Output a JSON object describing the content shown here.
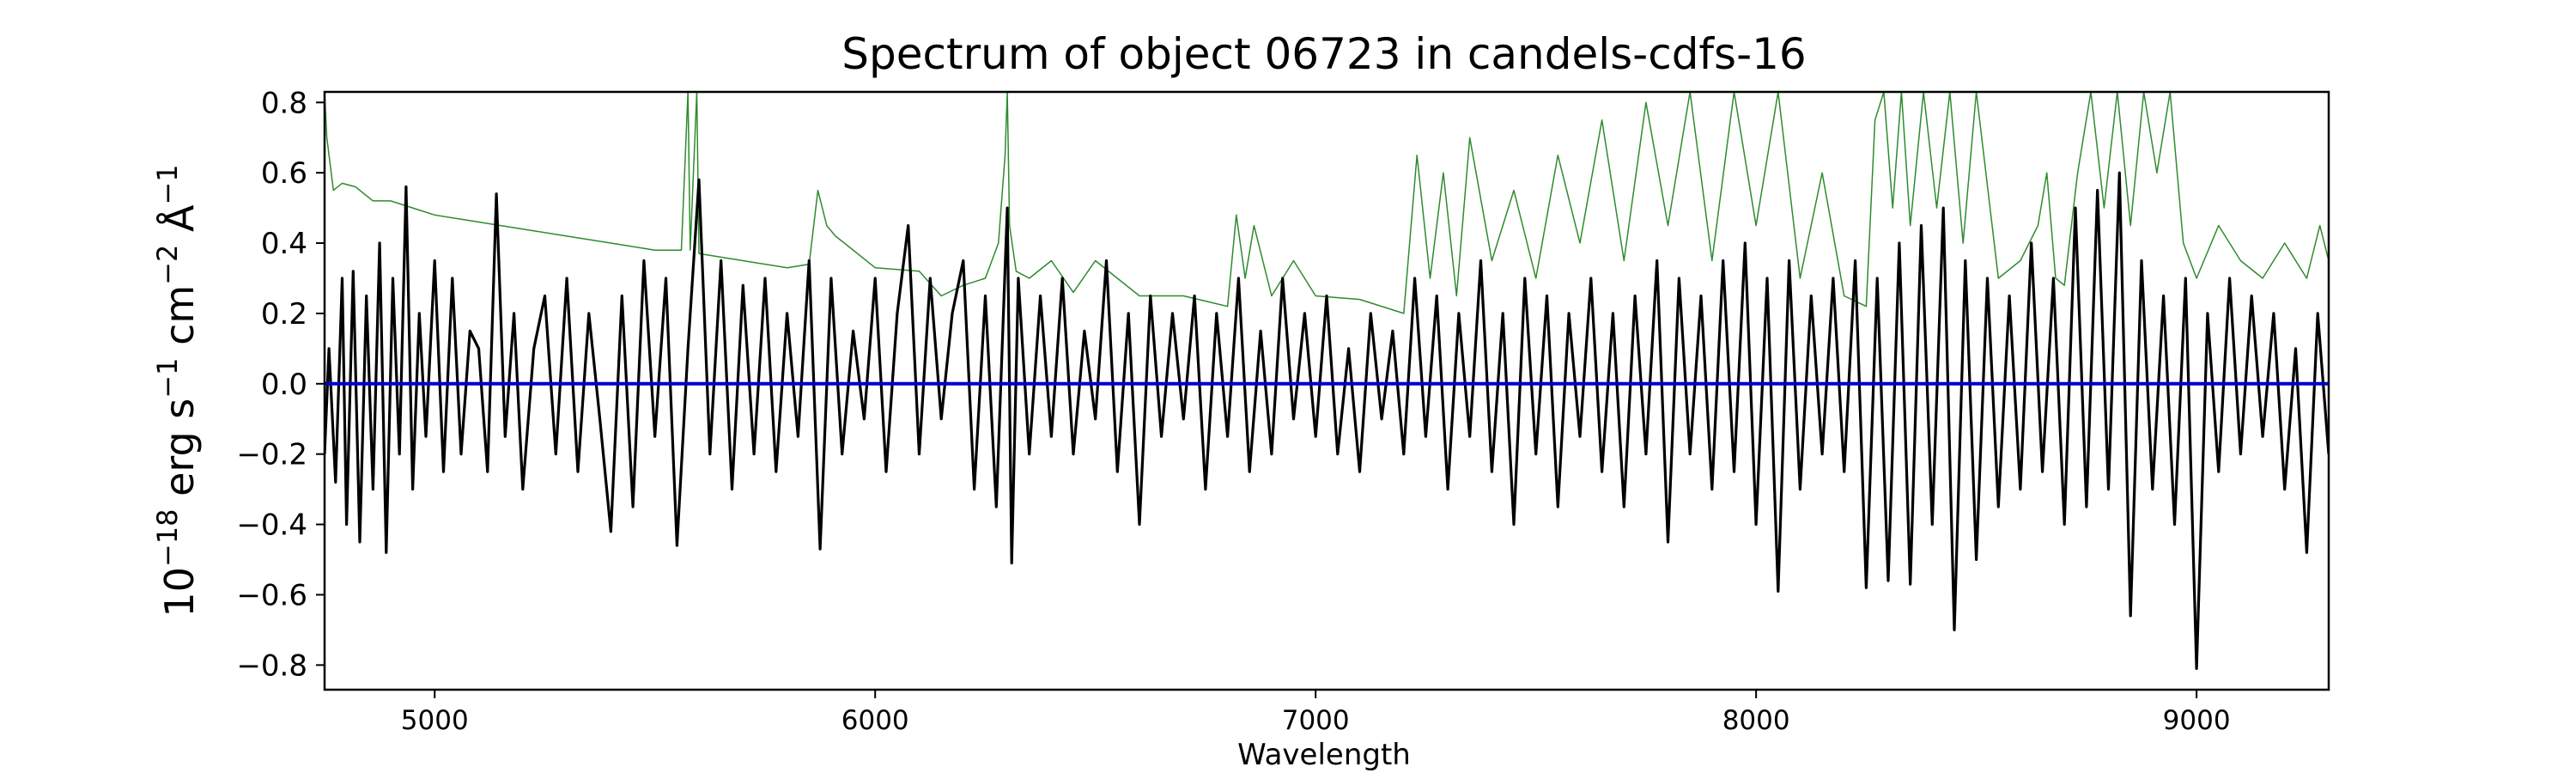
{
  "chart_data": {
    "type": "line",
    "title": "Spectrum of object 06723 in candels-cdfs-16",
    "xlabel": "Wavelength",
    "ylabel_base": "10",
    "ylabel_exp": "−18",
    "ylabel_rest": " erg s",
    "ylabel_s_exp": "−1",
    "ylabel_cm": " cm",
    "ylabel_cm_exp": "−2",
    "ylabel_A": " Å",
    "ylabel_A_exp": "−1",
    "xlim": [
      4750,
      9300
    ],
    "ylim": [
      -0.87,
      0.83
    ],
    "x_ticks": [
      5000,
      6000,
      7000,
      8000,
      9000
    ],
    "x_tick_labels": [
      "5000",
      "6000",
      "7000",
      "8000",
      "9000"
    ],
    "y_ticks": [
      -0.8,
      -0.6,
      -0.4,
      -0.2,
      0.0,
      0.2,
      0.4,
      0.6,
      0.8
    ],
    "y_tick_labels": [
      "−0.8",
      "−0.6",
      "−0.4",
      "−0.2",
      "0.0",
      "0.2",
      "0.4",
      "0.6",
      "0.8"
    ],
    "grid": false,
    "colors": {
      "flux": "#000000",
      "error": "#2e8b2e",
      "zero": "#0000cc"
    },
    "series": [
      {
        "role": "flux",
        "x": [
          4750,
          4760,
          4775,
          4790,
          4800,
          4815,
          4830,
          4845,
          4860,
          4875,
          4890,
          4905,
          4920,
          4935,
          4950,
          4965,
          4980,
          5000,
          5020,
          5040,
          5060,
          5080,
          5100,
          5120,
          5140,
          5160,
          5180,
          5200,
          5225,
          5250,
          5275,
          5300,
          5325,
          5350,
          5375,
          5400,
          5425,
          5450,
          5475,
          5500,
          5525,
          5550,
          5575,
          5600,
          5625,
          5650,
          5675,
          5700,
          5725,
          5750,
          5775,
          5800,
          5825,
          5850,
          5875,
          5900,
          5925,
          5950,
          5975,
          6000,
          6025,
          6050,
          6075,
          6100,
          6125,
          6150,
          6175,
          6200,
          6225,
          6250,
          6275,
          6300,
          6310,
          6325,
          6350,
          6375,
          6400,
          6425,
          6450,
          6475,
          6500,
          6525,
          6550,
          6575,
          6600,
          6625,
          6650,
          6675,
          6700,
          6725,
          6750,
          6775,
          6800,
          6825,
          6850,
          6875,
          6900,
          6925,
          6950,
          6975,
          7000,
          7025,
          7050,
          7075,
          7100,
          7125,
          7150,
          7175,
          7200,
          7225,
          7250,
          7275,
          7300,
          7325,
          7350,
          7375,
          7400,
          7425,
          7450,
          7475,
          7500,
          7525,
          7550,
          7575,
          7600,
          7625,
          7650,
          7675,
          7700,
          7725,
          7750,
          7775,
          7800,
          7825,
          7850,
          7875,
          7900,
          7925,
          7950,
          7975,
          8000,
          8025,
          8050,
          8075,
          8100,
          8125,
          8150,
          8175,
          8200,
          8225,
          8250,
          8275,
          8300,
          8325,
          8350,
          8375,
          8400,
          8425,
          8450,
          8475,
          8500,
          8525,
          8550,
          8575,
          8600,
          8625,
          8650,
          8675,
          8700,
          8725,
          8750,
          8775,
          8800,
          8825,
          8850,
          8875,
          8900,
          8925,
          8950,
          8975,
          9000,
          9025,
          9050,
          9075,
          9100,
          9125,
          9150,
          9175,
          9200,
          9225,
          9250,
          9275,
          9300
        ],
        "y": [
          -0.2,
          0.1,
          -0.28,
          0.3,
          -0.4,
          0.32,
          -0.45,
          0.25,
          -0.3,
          0.4,
          -0.48,
          0.3,
          -0.2,
          0.56,
          -0.3,
          0.2,
          -0.15,
          0.35,
          -0.25,
          0.3,
          -0.2,
          0.15,
          0.1,
          -0.25,
          0.54,
          -0.15,
          0.2,
          -0.3,
          0.1,
          0.25,
          -0.2,
          0.3,
          -0.25,
          0.2,
          -0.1,
          -0.42,
          0.25,
          -0.35,
          0.35,
          -0.15,
          0.3,
          -0.46,
          0.1,
          0.58,
          -0.2,
          0.35,
          -0.3,
          0.28,
          -0.2,
          0.3,
          -0.25,
          0.2,
          -0.15,
          0.35,
          -0.47,
          0.3,
          -0.2,
          0.15,
          -0.1,
          0.3,
          -0.25,
          0.2,
          0.45,
          -0.2,
          0.3,
          -0.1,
          0.2,
          0.35,
          -0.3,
          0.25,
          -0.35,
          0.5,
          -0.51,
          0.3,
          -0.2,
          0.25,
          -0.15,
          0.3,
          -0.2,
          0.15,
          -0.1,
          0.35,
          -0.25,
          0.2,
          -0.4,
          0.25,
          -0.15,
          0.2,
          -0.1,
          0.25,
          -0.3,
          0.2,
          -0.15,
          0.3,
          -0.25,
          0.15,
          -0.2,
          0.3,
          -0.1,
          0.2,
          -0.15,
          0.25,
          -0.2,
          0.1,
          -0.25,
          0.2,
          -0.1,
          0.15,
          -0.2,
          0.3,
          -0.15,
          0.25,
          -0.3,
          0.2,
          -0.15,
          0.35,
          -0.25,
          0.2,
          -0.4,
          0.3,
          -0.2,
          0.25,
          -0.35,
          0.2,
          -0.15,
          0.3,
          -0.25,
          0.2,
          -0.35,
          0.25,
          -0.2,
          0.35,
          -0.45,
          0.3,
          -0.2,
          0.25,
          -0.3,
          0.35,
          -0.25,
          0.4,
          -0.4,
          0.3,
          -0.59,
          0.35,
          -0.3,
          0.25,
          -0.2,
          0.3,
          -0.25,
          0.35,
          -0.58,
          0.3,
          -0.56,
          0.4,
          -0.57,
          0.45,
          -0.4,
          0.5,
          -0.7,
          0.35,
          -0.5,
          0.3,
          -0.35,
          0.25,
          -0.3,
          0.4,
          -0.25,
          0.3,
          -0.4,
          0.5,
          -0.35,
          0.55,
          -0.3,
          0.6,
          -0.66,
          0.35,
          -0.3,
          0.25,
          -0.4,
          0.3,
          -0.81,
          0.2,
          -0.25,
          0.3,
          -0.2,
          0.25,
          -0.15,
          0.2,
          -0.3,
          0.1,
          -0.48,
          0.2,
          -0.2
        ],
        "name": ""
      },
      {
        "role": "error",
        "x": [
          4750,
          4755,
          4770,
          4790,
          4820,
          4860,
          4900,
          4950,
          5000,
          5100,
          5200,
          5300,
          5400,
          5500,
          5560,
          5575,
          5580,
          5595,
          5600,
          5700,
          5800,
          5850,
          5870,
          5890,
          5910,
          5930,
          6000,
          6100,
          6150,
          6200,
          6250,
          6280,
          6295,
          6300,
          6305,
          6320,
          6350,
          6400,
          6450,
          6500,
          6550,
          6600,
          6700,
          6800,
          6820,
          6840,
          6860,
          6900,
          6950,
          7000,
          7100,
          7200,
          7230,
          7260,
          7290,
          7320,
          7350,
          7400,
          7450,
          7500,
          7550,
          7600,
          7650,
          7700,
          7750,
          7800,
          7850,
          7900,
          7950,
          8000,
          8050,
          8100,
          8150,
          8200,
          8250,
          8270,
          8290,
          8310,
          8330,
          8350,
          8380,
          8410,
          8440,
          8470,
          8500,
          8550,
          8600,
          8640,
          8660,
          8680,
          8700,
          8730,
          8760,
          8790,
          8820,
          8850,
          8880,
          8910,
          8940,
          8970,
          9000,
          9050,
          9100,
          9150,
          9200,
          9250,
          9280,
          9300
        ],
        "y": [
          0.83,
          0.7,
          0.55,
          0.57,
          0.56,
          0.52,
          0.52,
          0.5,
          0.48,
          0.46,
          0.44,
          0.42,
          0.4,
          0.38,
          0.38,
          0.83,
          0.38,
          0.83,
          0.37,
          0.35,
          0.33,
          0.34,
          0.55,
          0.45,
          0.42,
          0.4,
          0.33,
          0.32,
          0.25,
          0.28,
          0.3,
          0.4,
          0.65,
          0.83,
          0.45,
          0.32,
          0.3,
          0.35,
          0.26,
          0.35,
          0.3,
          0.25,
          0.25,
          0.22,
          0.48,
          0.3,
          0.45,
          0.25,
          0.35,
          0.25,
          0.24,
          0.2,
          0.65,
          0.3,
          0.6,
          0.25,
          0.7,
          0.35,
          0.55,
          0.3,
          0.65,
          0.4,
          0.75,
          0.35,
          0.8,
          0.45,
          0.83,
          0.35,
          0.83,
          0.45,
          0.83,
          0.3,
          0.6,
          0.25,
          0.22,
          0.75,
          0.83,
          0.5,
          0.83,
          0.45,
          0.83,
          0.5,
          0.83,
          0.4,
          0.83,
          0.3,
          0.35,
          0.45,
          0.6,
          0.3,
          0.28,
          0.6,
          0.83,
          0.5,
          0.83,
          0.45,
          0.83,
          0.6,
          0.83,
          0.4,
          0.3,
          0.45,
          0.35,
          0.3,
          0.4,
          0.3,
          0.45,
          0.35
        ],
        "name": ""
      },
      {
        "role": "zero",
        "x": [
          4750,
          9300
        ],
        "y": [
          0.0,
          0.0
        ],
        "name": ""
      }
    ]
  }
}
